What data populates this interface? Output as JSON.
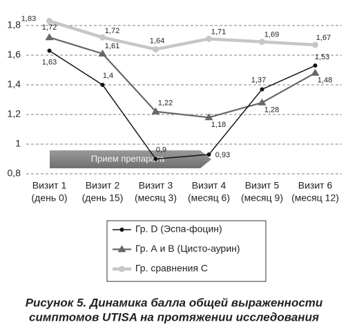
{
  "chart_data": {
    "type": "line",
    "title": [
      "Рисунок 5. Динамика балла общей выраженности",
      "симптомов UTISA на протяжении исследования"
    ],
    "categories": [
      [
        "Визит 1",
        "(день 0)"
      ],
      [
        "Визит 2",
        "(день 15)"
      ],
      [
        "Визит 3",
        "(месяц 3)"
      ],
      [
        "Визит 4",
        "(месяц 6)"
      ],
      [
        "Визит 5",
        "(месяц 9)"
      ],
      [
        "Визит 6",
        "(месяц 12)"
      ]
    ],
    "ylim": [
      0.8,
      1.9
    ],
    "yticks": [
      {
        "value": 0.8,
        "label": "0,8"
      },
      1,
      {
        "value": 1.2,
        "label": "1,2"
      },
      {
        "value": 1.4,
        "label": "1,4"
      },
      {
        "value": 1.6,
        "label": "1,6"
      },
      {
        "value": 1.8,
        "label": "1,8"
      }
    ],
    "grid": true,
    "annotation": "Прием препарата",
    "series": [
      {
        "name": "Гр. D (Эспа-фоцин)",
        "color": "#111111",
        "marker": "circle",
        "values": [
          1.63,
          1.4,
          0.9,
          0.93,
          1.37,
          1.53
        ],
        "value_labels": [
          "1,63",
          "1,4",
          "0,9",
          "0,93",
          "1,37",
          "1,53"
        ]
      },
      {
        "name": "Гр. А и В (Цисто-аурин)",
        "color": "#666666",
        "marker": "triangle",
        "values": [
          1.72,
          1.61,
          1.22,
          1.18,
          1.28,
          1.48
        ],
        "value_labels": [
          "1,72",
          "1,61",
          "1,22",
          "1,18",
          "1,28",
          "1,48"
        ]
      },
      {
        "name": "Гр. сравнения С",
        "color": "#c6c6c6",
        "marker": "circle",
        "values": [
          1.83,
          1.72,
          1.64,
          1.71,
          1.69,
          1.67
        ],
        "value_labels": [
          "1,83",
          "1,72",
          "1,64",
          "1,71",
          "1,69",
          "1,67"
        ]
      }
    ]
  }
}
